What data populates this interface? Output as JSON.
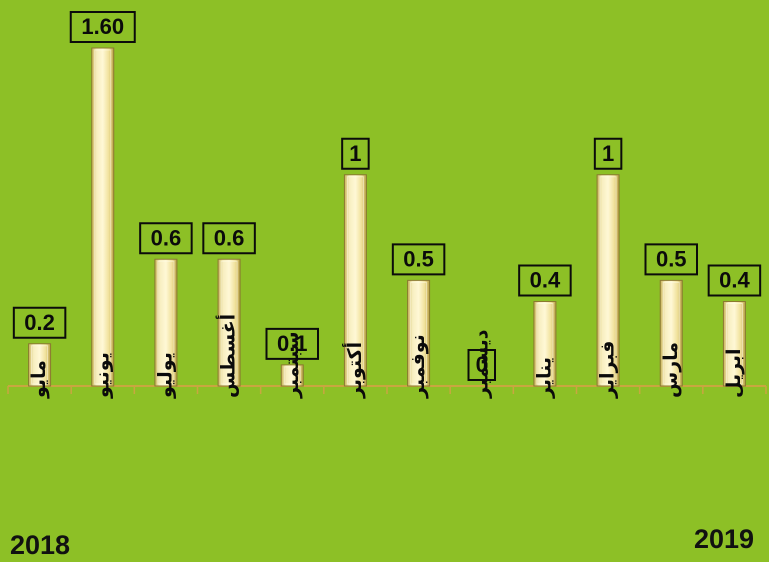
{
  "colors": {
    "background": "#8dc026",
    "bar_fill": "#f2e6a2",
    "bar_edge": "#8a7a30",
    "label_box_fill": "#8dc026",
    "axis": "#c9a640"
  },
  "chart_data": {
    "type": "bar",
    "categories": [
      "مايو",
      "يونيو",
      "يوليو",
      "أغسطس",
      "سبتمبر",
      "أكتوبر",
      "نوفمبر",
      "ديسمبر",
      "يناير",
      "فبراير",
      "مارس",
      "ابريل"
    ],
    "values": [
      0.2,
      1.6,
      0.6,
      0.6,
      0.1,
      1,
      0.5,
      0,
      0.4,
      1,
      0.5,
      0.4
    ],
    "data_labels": [
      "0.2",
      "1.60",
      "0.6",
      "0.6",
      "0.1",
      "1",
      "0.5",
      "0",
      "0.4",
      "1",
      "0.5",
      "0.4"
    ],
    "ylim": [
      0,
      1.6
    ],
    "grid": false,
    "legend": "none",
    "year_labels": {
      "left": "2018",
      "right": "2019"
    }
  }
}
